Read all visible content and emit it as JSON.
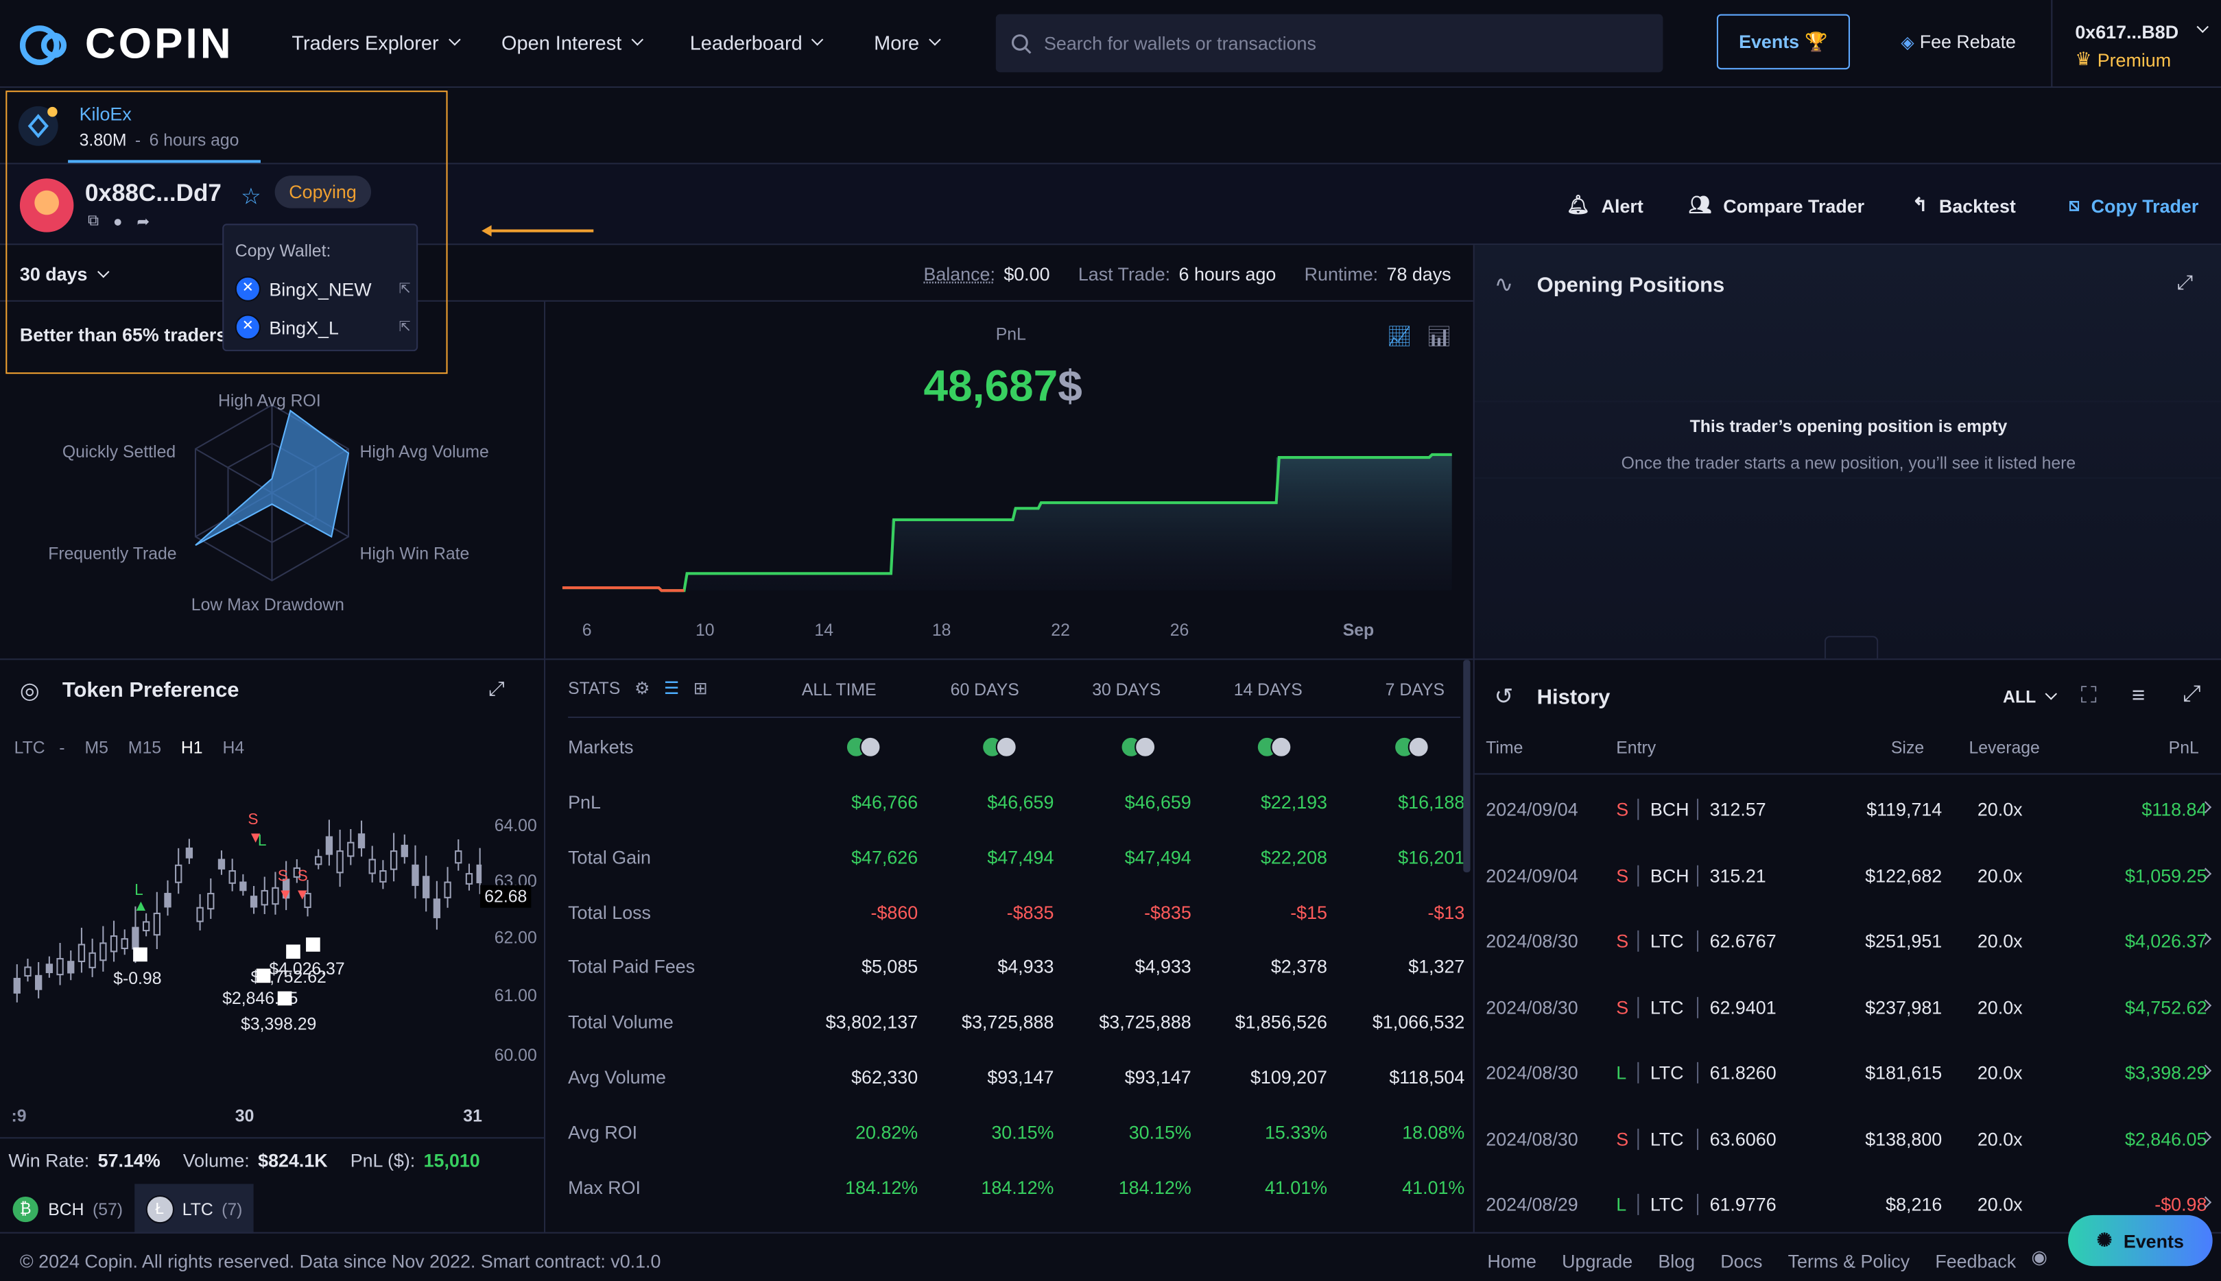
{
  "header": {
    "logo_text": "COPIN",
    "nav": [
      {
        "label": "Traders Explorer"
      },
      {
        "label": "Open Interest"
      },
      {
        "label": "Leaderboard"
      },
      {
        "label": "More"
      }
    ],
    "search_placeholder": "Search for wallets or transactions",
    "events_label": "Events",
    "fee_rebate": "Fee Rebate",
    "wallet": "0x617...B8D",
    "premium": "Premium"
  },
  "protocol": {
    "name": "KiloEx",
    "volume": "3.80M",
    "separator": "-",
    "time": "6 hours ago"
  },
  "trader": {
    "address": "0x88C...Dd7",
    "copying": "Copying"
  },
  "actions": {
    "alert": "Alert",
    "compare": "Compare Trader",
    "backtest": "Backtest",
    "copy": "Copy Trader"
  },
  "popup": {
    "title": "Copy Wallet:",
    "wallets": [
      "BingX_NEW",
      "BingX_L"
    ]
  },
  "stats_bar": {
    "period": "30 days",
    "balance_label": "Balance:",
    "balance": "$0.00",
    "last_trade_label": "Last Trade:",
    "last_trade": "6 hours ago",
    "runtime_label": "Runtime:",
    "runtime": "78 days"
  },
  "radar": {
    "better": "Better than 65% traders",
    "labels": [
      "High Avg ROI",
      "High Avg Volume",
      "High Win Rate",
      "Low Max Drawdown",
      "Frequently Trade",
      "Quickly Settled"
    ]
  },
  "pnl": {
    "label": "PnL",
    "value": "48,687",
    "unit": "$",
    "x_ticks": [
      "6",
      "10",
      "14",
      "18",
      "22",
      "26",
      "Sep"
    ]
  },
  "open_positions": {
    "title": "Opening Positions",
    "empty_title": "This trader’s opening position is empty",
    "empty_desc": "Once the trader starts a new position, you’ll see it listed here"
  },
  "token_pref": {
    "title": "Token Preference",
    "pair": "LTC",
    "dash": "-",
    "timeframes": [
      "M5",
      "M15",
      "H1",
      "H4"
    ],
    "y_ticks": [
      "64.00",
      "63.00",
      "62.00",
      "61.00",
      "60.00"
    ],
    "current": "62.68",
    "x_ticks": [
      ":9",
      "30",
      "31"
    ],
    "markers": {
      "s": "S",
      "l": "L"
    },
    "pnl_labels": [
      "$-0.98",
      "$4,752.62",
      "$4,026.37",
      "$2,846.05",
      "$3,398.29"
    ],
    "win_rate_label": "Win Rate:",
    "win_rate": "57.14%",
    "volume_label": "Volume:",
    "volume": "$824.1K",
    "pnl_label": "PnL ($):",
    "pnl_value": "15,010",
    "tokens": [
      {
        "name": "BCH",
        "count": "(57)"
      },
      {
        "name": "LTC",
        "count": "(7)"
      }
    ]
  },
  "stats": {
    "label": "STATS",
    "columns": [
      "ALL TIME",
      "60 DAYS",
      "30 DAYS",
      "14 DAYS",
      "7 DAYS"
    ],
    "markets_label": "Markets",
    "rows": [
      {
        "label": "PnL",
        "values": [
          "$46,766",
          "$46,659",
          "$46,659",
          "$22,193",
          "$16,188"
        ],
        "tone": "green"
      },
      {
        "label": "Total Gain",
        "values": [
          "$47,626",
          "$47,494",
          "$47,494",
          "$22,208",
          "$16,201"
        ],
        "tone": "green"
      },
      {
        "label": "Total Loss",
        "values": [
          "-$860",
          "-$835",
          "-$835",
          "-$15",
          "-$13"
        ],
        "tone": "red"
      },
      {
        "label": "Total Paid Fees",
        "values": [
          "$5,085",
          "$4,933",
          "$4,933",
          "$2,378",
          "$1,327"
        ],
        "tone": "white"
      },
      {
        "label": "Total Volume",
        "values": [
          "$3,802,137",
          "$3,725,888",
          "$3,725,888",
          "$1,856,526",
          "$1,066,532"
        ],
        "tone": "white"
      },
      {
        "label": "Avg Volume",
        "values": [
          "$62,330",
          "$93,147",
          "$93,147",
          "$109,207",
          "$118,504"
        ],
        "tone": "white"
      },
      {
        "label": "Avg ROI",
        "values": [
          "20.82%",
          "30.15%",
          "30.15%",
          "15.33%",
          "18.08%"
        ],
        "tone": "green"
      },
      {
        "label": "Max ROI",
        "values": [
          "184.12%",
          "184.12%",
          "184.12%",
          "41.01%",
          "41.01%"
        ],
        "tone": "green"
      }
    ]
  },
  "history": {
    "title": "History",
    "filter": "ALL",
    "columns": [
      "Time",
      "Entry",
      "Size",
      "Leverage",
      "PnL"
    ],
    "rows": [
      {
        "time": "2024/09/04",
        "side": "S",
        "token": "BCH",
        "entry": "312.57",
        "size": "$119,714",
        "lev": "20.0x",
        "pnl": "$118.84",
        "tone": "green"
      },
      {
        "time": "2024/09/04",
        "side": "S",
        "token": "BCH",
        "entry": "315.21",
        "size": "$122,682",
        "lev": "20.0x",
        "pnl": "$1,059.25",
        "tone": "green"
      },
      {
        "time": "2024/08/30",
        "side": "S",
        "token": "LTC",
        "entry": "62.6767",
        "size": "$251,951",
        "lev": "20.0x",
        "pnl": "$4,026.37",
        "tone": "green"
      },
      {
        "time": "2024/08/30",
        "side": "S",
        "token": "LTC",
        "entry": "62.9401",
        "size": "$237,981",
        "lev": "20.0x",
        "pnl": "$4,752.62",
        "tone": "green"
      },
      {
        "time": "2024/08/30",
        "side": "L",
        "token": "LTC",
        "entry": "61.8260",
        "size": "$181,615",
        "lev": "20.0x",
        "pnl": "$3,398.29",
        "tone": "green"
      },
      {
        "time": "2024/08/30",
        "side": "S",
        "token": "LTC",
        "entry": "63.6060",
        "size": "$138,800",
        "lev": "20.0x",
        "pnl": "$2,846.05",
        "tone": "green"
      },
      {
        "time": "2024/08/29",
        "side": "L",
        "token": "LTC",
        "entry": "61.9776",
        "size": "$8,216",
        "lev": "20.0x",
        "pnl": "-$0.98",
        "tone": "red"
      }
    ]
  },
  "footer": {
    "copyright": "© 2024 Copin. All rights reserved. Data since Nov 2022. Smart contract: v0.1.0",
    "links": [
      "Home",
      "Upgrade",
      "Blog",
      "Docs",
      "Terms & Policy",
      "Feedback"
    ],
    "events_label": "Events"
  },
  "colors": {
    "accent": "#4eaeff",
    "green": "#38d060",
    "red": "#ff5b5b",
    "highlight": "#f0a030"
  }
}
